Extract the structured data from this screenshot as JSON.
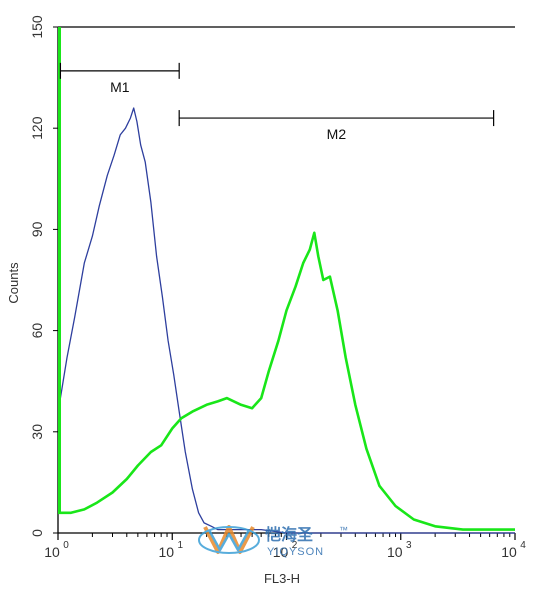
{
  "chart_data": {
    "type": "line",
    "xlabel": "FL3-H",
    "ylabel": "Counts",
    "xscale": "log",
    "xlim": [
      1,
      10000
    ],
    "ylim": [
      0,
      150
    ],
    "grid": false,
    "yticks": [
      "0",
      "30",
      "60",
      "90",
      "120",
      "150"
    ],
    "xticks": [
      {
        "base": "10",
        "exp": "0"
      },
      {
        "base": "10",
        "exp": "1"
      },
      {
        "base": "10",
        "exp": "2"
      },
      {
        "base": "10",
        "exp": "3"
      },
      {
        "base": "10",
        "exp": "4"
      }
    ],
    "gates": [
      {
        "label": "M1",
        "x": [
          1.05,
          11.5
        ],
        "y": 137
      },
      {
        "label": "M2",
        "x": [
          11.5,
          6500
        ],
        "y": 123
      }
    ],
    "series": [
      {
        "color": "#2e3f9e",
        "x": [
          1.05,
          1.2,
          1.4,
          1.7,
          2.0,
          2.3,
          2.7,
          3.1,
          3.5,
          3.9,
          4.3,
          4.6,
          4.9,
          5.3,
          5.8,
          6.5,
          7.3,
          8.2,
          9.2,
          10.3,
          11.5,
          13,
          15,
          17,
          19,
          22,
          25,
          30,
          40,
          60,
          100,
          200,
          1000,
          10000
        ],
        "y": [
          40,
          52,
          64,
          80,
          88,
          97,
          106,
          112,
          118,
          120,
          123,
          126,
          122,
          115,
          110,
          98,
          82,
          70,
          57,
          47,
          36,
          24,
          13,
          6,
          3,
          2,
          1,
          1,
          1,
          1,
          0,
          0,
          0,
          0
        ]
      },
      {
        "color": "#19e619",
        "x": [
          1,
          1.3,
          1.7,
          2.2,
          3.0,
          4.0,
          5.0,
          6.5,
          8.0,
          10,
          12,
          15,
          20,
          25,
          30,
          40,
          50,
          60,
          70,
          85,
          100,
          120,
          140,
          160,
          175,
          190,
          210,
          240,
          280,
          330,
          400,
          500,
          650,
          900,
          1300,
          2000,
          3500,
          6000,
          10000
        ],
        "y": [
          6,
          6,
          7,
          9,
          12,
          16,
          20,
          24,
          26,
          31,
          34,
          36,
          38,
          39,
          40,
          38,
          37,
          40,
          48,
          57,
          66,
          73,
          80,
          84,
          89,
          82,
          75,
          76,
          66,
          52,
          38,
          25,
          14,
          8,
          4,
          2,
          1,
          1,
          1
        ]
      }
    ]
  },
  "axes": {
    "ylabel": "Counts",
    "xlabel": "FL3-H"
  },
  "gates": {
    "m1": "M1",
    "m2": "M2"
  },
  "watermark": {
    "chinese": "恺海圣",
    "brand": "YIQYSON",
    "mark": "™"
  },
  "colors": {
    "axis": "#000000",
    "blue_series": "#2e3f9e",
    "green_series": "#19e619",
    "logo": "#2f6fb0"
  }
}
